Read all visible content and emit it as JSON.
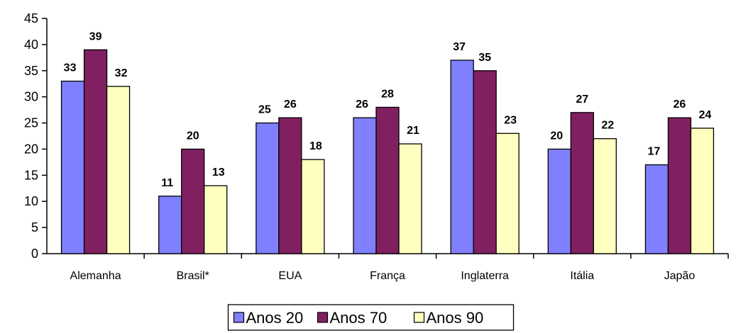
{
  "chart_data": {
    "type": "bar",
    "title": "",
    "xlabel": "",
    "ylabel": "",
    "categories": [
      "Alemanha",
      "Brasil*",
      "EUA",
      "França",
      "Inglaterra",
      "Itália",
      "Japão"
    ],
    "series": [
      {
        "name": "Anos 20",
        "color": "#8080ff",
        "values": [
          33,
          11,
          25,
          26,
          37,
          20,
          17
        ]
      },
      {
        "name": "Anos 70",
        "color": "#802060",
        "values": [
          39,
          20,
          26,
          28,
          35,
          27,
          26
        ]
      },
      {
        "name": "Anos 90",
        "color": "#ffffc0",
        "values": [
          32,
          13,
          18,
          21,
          23,
          22,
          24
        ]
      }
    ],
    "ylim": [
      0,
      45
    ],
    "yticks": [
      0,
      5,
      10,
      15,
      20,
      25,
      30,
      35,
      40,
      45
    ],
    "grid": false,
    "data_labels": true,
    "legend_position": "bottom"
  }
}
